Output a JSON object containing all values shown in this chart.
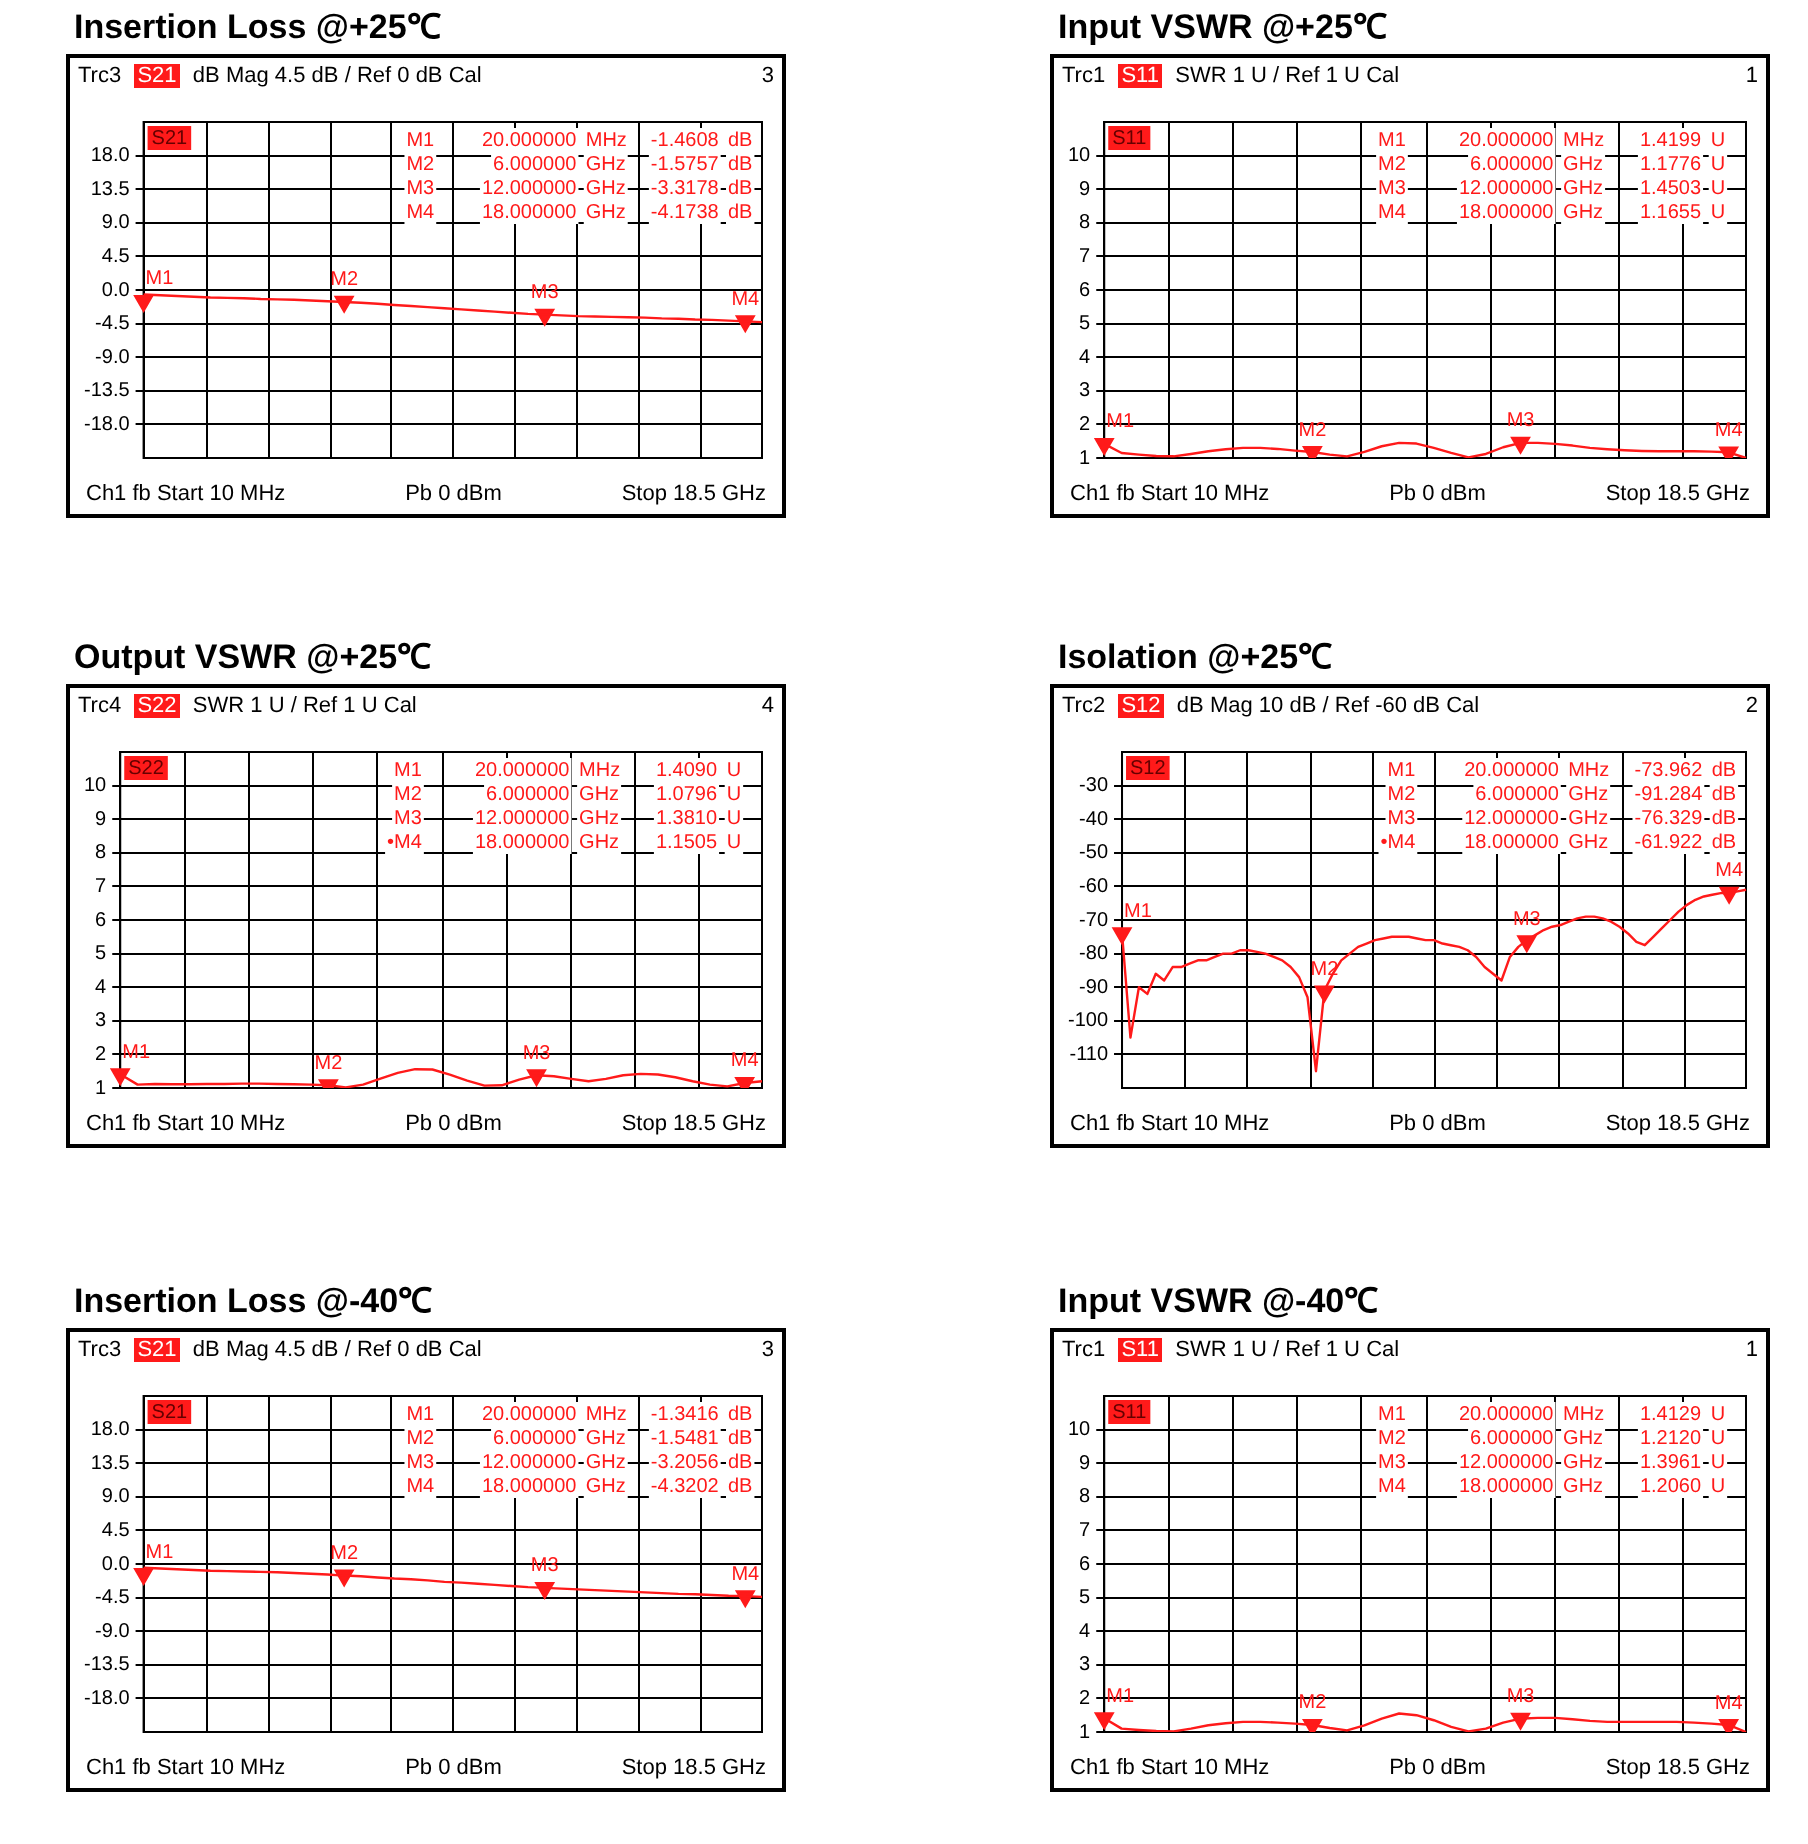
{
  "chart_data": [
    {
      "type": "line",
      "title": "Insertion Loss @+25℃",
      "subtitle": "Trc3 S21 dB Mag 4.5 dB / Ref 0 dB Cal 3",
      "ylabel": "S21",
      "annotations": [
        "Ch1 fb Start 10 MHz",
        "Pb 0 dBm",
        "Stop 18.5 GHz",
        "M1 20.000000 MHz -1.4608 dB",
        "M2 6.000000 GHz -1.5757 dB",
        "M3 12.000000 GHz -3.3178 dB",
        "M4 18.000000 GHz -4.1738 dB",
        "M1",
        "M2",
        "M3",
        "M4"
      ],
      "categories": [
        null,
        null,
        null,
        null,
        null,
        null,
        null,
        null,
        null,
        null,
        null,
        null,
        null,
        null,
        null,
        null,
        null,
        null,
        null,
        null,
        null,
        null,
        null,
        null,
        null,
        null,
        null,
        null,
        null,
        null,
        null,
        null,
        null,
        null,
        null,
        null,
        null,
        null
      ],
      "series": [
        {
          "color": "#ff1a1a",
          "values": [
            -0.6,
            -0.7,
            -0.8,
            -0.9,
            -1.0,
            -1.05,
            -1.1,
            -1.2,
            -1.25,
            -1.3,
            -1.4,
            -1.5,
            -1.6,
            -1.7,
            -1.85,
            -2.0,
            -2.15,
            -2.3,
            -2.45,
            -2.6,
            -2.75,
            -2.9,
            -3.05,
            -3.2,
            -3.3,
            -3.4,
            -3.5,
            -3.55,
            -3.6,
            -3.65,
            -3.7,
            -3.8,
            -3.85,
            -3.95,
            -4.0,
            -4.1,
            -4.2,
            -4.3
          ]
        },
        {
          "type": "scatter",
          "color": "#ff1a1a",
          "values": [
            -1.4608,
            null,
            null,
            null,
            null,
            null,
            null,
            null,
            null,
            null,
            null,
            null,
            -1.5757,
            null,
            null,
            null,
            null,
            null,
            null,
            null,
            null,
            null,
            null,
            null,
            -3.3178,
            null,
            null,
            null,
            null,
            null,
            null,
            null,
            null,
            null,
            null,
            null,
            -4.1738,
            null
          ]
        }
      ],
      "ylim": [
        -22.5,
        22.5
      ],
      "yticks": [
        {
          "value": 18,
          "label": "18.0"
        },
        {
          "value": 13.5,
          "label": "13.5"
        },
        {
          "value": 9,
          "label": "9.0"
        },
        {
          "value": 4.5,
          "label": "4.5"
        },
        {
          "value": 0,
          "label": "0.0"
        },
        {
          "value": -4.5,
          "label": "-4.5"
        },
        {
          "value": -9,
          "label": "-9.0"
        },
        {
          "value": -13.5,
          "label": "-13.5"
        },
        {
          "value": -18,
          "label": "-18.0"
        }
      ],
      "tick_labels": "y",
      "grid": true
    },
    {
      "type": "line",
      "title": "Input VSWR @+25℃",
      "subtitle": "Trc1 S11 SWR 1 U / Ref 1 U Cal 1",
      "ylabel": "S11",
      "annotations": [
        "Ch1 fb Start 10 MHz",
        "Pb 0 dBm",
        "Stop 18.5 GHz",
        "M1 20.000000 MHz 1.4199 U",
        "M2 6.000000 GHz 1.1776 U",
        "M3 12.000000 GHz 1.4503 U",
        "M4 18.000000 GHz 1.1655 U",
        "M1",
        "M2",
        "M3",
        "M4"
      ],
      "categories": [
        null,
        null,
        null,
        null,
        null,
        null,
        null,
        null,
        null,
        null,
        null,
        null,
        null,
        null,
        null,
        null,
        null,
        null,
        null,
        null,
        null,
        null,
        null,
        null,
        null,
        null,
        null,
        null,
        null,
        null,
        null,
        null,
        null,
        null,
        null,
        null,
        null,
        null
      ],
      "series": [
        {
          "color": "#ff1a1a",
          "values": [
            1.42,
            1.15,
            1.1,
            1.06,
            1.05,
            1.12,
            1.2,
            1.26,
            1.3,
            1.3,
            1.27,
            1.22,
            1.18,
            1.1,
            1.05,
            1.18,
            1.35,
            1.45,
            1.43,
            1.3,
            1.15,
            1.02,
            1.12,
            1.32,
            1.45,
            1.45,
            1.42,
            1.37,
            1.3,
            1.26,
            1.23,
            1.21,
            1.2,
            1.2,
            1.2,
            1.19,
            1.17,
            1.0
          ]
        },
        {
          "type": "scatter",
          "color": "#ff1a1a",
          "values": [
            1.4199,
            null,
            null,
            null,
            null,
            null,
            null,
            null,
            null,
            null,
            null,
            null,
            1.1776,
            null,
            null,
            null,
            null,
            null,
            null,
            null,
            null,
            null,
            null,
            null,
            1.4503,
            null,
            null,
            null,
            null,
            null,
            null,
            null,
            null,
            null,
            null,
            null,
            1.1655,
            null
          ]
        }
      ],
      "ylim": [
        1,
        11
      ],
      "yticks": [
        1,
        2,
        3,
        4,
        5,
        6,
        7,
        8,
        9,
        10
      ],
      "tick_labels": "y",
      "grid": true
    },
    {
      "type": "line",
      "title": "Output VSWR @+25℃",
      "subtitle": "Trc4 S22 SWR 1 U / Ref 1 U Cal 4",
      "ylabel": "S22",
      "annotations": [
        "Ch1 fb Start 10 MHz",
        "Pb 0 dBm",
        "Stop 18.5 GHz",
        "M1 20.000000 MHz 1.4090 U",
        "M2 6.000000 GHz 1.0796 U",
        "M3 12.000000 GHz 1.3810 U",
        "•M4 18.000000 GHz 1.1505 U",
        "M1",
        "M2",
        "M3",
        "M4"
      ],
      "categories": [
        null,
        null,
        null,
        null,
        null,
        null,
        null,
        null,
        null,
        null,
        null,
        null,
        null,
        null,
        null,
        null,
        null,
        null,
        null,
        null,
        null,
        null,
        null,
        null,
        null,
        null,
        null,
        null,
        null,
        null,
        null,
        null,
        null,
        null,
        null,
        null,
        null,
        null
      ],
      "series": [
        {
          "color": "#ff1a1a",
          "values": [
            1.41,
            1.1,
            1.12,
            1.11,
            1.11,
            1.12,
            1.12,
            1.13,
            1.13,
            1.12,
            1.11,
            1.1,
            1.08,
            1.02,
            1.1,
            1.28,
            1.45,
            1.56,
            1.55,
            1.4,
            1.22,
            1.07,
            1.08,
            1.25,
            1.38,
            1.35,
            1.27,
            1.2,
            1.27,
            1.38,
            1.42,
            1.4,
            1.32,
            1.2,
            1.1,
            1.05,
            1.15,
            1.2
          ]
        },
        {
          "type": "scatter",
          "color": "#ff1a1a",
          "values": [
            1.409,
            null,
            null,
            null,
            null,
            null,
            null,
            null,
            null,
            null,
            null,
            null,
            1.0796,
            null,
            null,
            null,
            null,
            null,
            null,
            null,
            null,
            null,
            null,
            null,
            1.381,
            null,
            null,
            null,
            null,
            null,
            null,
            null,
            null,
            null,
            null,
            null,
            1.1505,
            null
          ]
        }
      ],
      "ylim": [
        1,
        11
      ],
      "yticks": [
        1,
        2,
        3,
        4,
        5,
        6,
        7,
        8,
        9,
        10
      ],
      "tick_labels": "y",
      "grid": true
    },
    {
      "type": "line",
      "title": "Isolation @+25℃",
      "subtitle": "Trc2 S12 dB Mag 10 dB / Ref -60 dB Cal 2",
      "ylabel": "S12",
      "annotations": [
        "Ch1 fb Start 10 MHz",
        "Pb 0 dBm",
        "Stop 18.5 GHz",
        "M1 20.000000 MHz -73.962 dB",
        "M2 6.000000 GHz -91.284 dB",
        "M3 12.000000 GHz -76.329 dB",
        "•M4 18.000000 GHz -61.922 dB",
        "M1",
        "M2",
        "M3",
        "M4"
      ],
      "categories": [
        null,
        null,
        null,
        null,
        null,
        null,
        null,
        null,
        null,
        null,
        null,
        null,
        null,
        null,
        null,
        null,
        null,
        null,
        null,
        null,
        null,
        null,
        null,
        null,
        null,
        null,
        null,
        null,
        null,
        null,
        null,
        null,
        null,
        null,
        null,
        null,
        null,
        null,
        null,
        null,
        null,
        null,
        null,
        null,
        null,
        null,
        null,
        null,
        null,
        null,
        null,
        null,
        null,
        null,
        null,
        null,
        null,
        null,
        null,
        null,
        null,
        null,
        null,
        null,
        null,
        null,
        null,
        null,
        null,
        null,
        null,
        null,
        null,
        null,
        null
      ],
      "series": [
        {
          "color": "#ff1a1a",
          "values": [
            -74,
            -105,
            -90,
            -92,
            -86,
            -88,
            -84,
            -84,
            -83,
            -82,
            -82,
            -81,
            -80,
            -80,
            -79,
            -79,
            -79.5,
            -80,
            -81,
            -82,
            -84,
            -87,
            -93,
            -115,
            -91,
            -86,
            -82,
            -80,
            -78,
            -77,
            -76,
            -75.5,
            -75,
            -75,
            -75,
            -75.5,
            -76,
            -76,
            -77,
            -77.5,
            -78,
            -79,
            -81,
            -84,
            -86,
            -88,
            -81,
            -78,
            -76,
            -74.5,
            -73,
            -72,
            -71.5,
            -70.5,
            -69.5,
            -69,
            -69,
            -69.5,
            -70.5,
            -72,
            -74,
            -76.5,
            -77.5,
            -75,
            -72.5,
            -70,
            -67.5,
            -65.5,
            -64,
            -63,
            -62.5,
            -62,
            -62,
            -61.5,
            -61
          ]
        },
        {
          "type": "scatter",
          "color": "#ff1a1a",
          "values": [
            -73.962,
            null,
            null,
            null,
            null,
            null,
            null,
            null,
            null,
            null,
            null,
            null,
            null,
            null,
            null,
            null,
            null,
            null,
            null,
            null,
            null,
            null,
            null,
            null,
            -91.284,
            null,
            null,
            null,
            null,
            null,
            null,
            null,
            null,
            null,
            null,
            null,
            null,
            null,
            null,
            null,
            null,
            null,
            null,
            null,
            null,
            null,
            null,
            null,
            -76.329,
            null,
            null,
            null,
            null,
            null,
            null,
            null,
            null,
            null,
            null,
            null,
            null,
            null,
            null,
            null,
            null,
            null,
            null,
            null,
            null,
            null,
            null,
            null,
            -61.922,
            null,
            null
          ]
        }
      ],
      "ylim": [
        -120,
        -20
      ],
      "yticks": [
        -30,
        -40,
        -50,
        -60,
        -70,
        -80,
        -90,
        -100,
        -110
      ],
      "tick_labels": "y",
      "grid": true
    },
    {
      "type": "line",
      "title": "Insertion Loss @-40℃",
      "subtitle": "Trc3 S21 dB Mag 4.5 dB / Ref 0 dB Cal 3",
      "ylabel": "S21",
      "annotations": [
        "Ch1 fb Start 10 MHz",
        "Pb 0 dBm",
        "Stop 18.5 GHz",
        "M1 20.000000 MHz -1.3416 dB",
        "M2 6.000000 GHz -1.5481 dB",
        "M3 12.000000 GHz -3.2056 dB",
        "M4 18.000000 GHz -4.3202 dB",
        "M1",
        "M2",
        "M3",
        "M4"
      ],
      "categories": [
        null,
        null,
        null,
        null,
        null,
        null,
        null,
        null,
        null,
        null,
        null,
        null,
        null,
        null,
        null,
        null,
        null,
        null,
        null,
        null,
        null,
        null,
        null,
        null,
        null,
        null,
        null,
        null,
        null,
        null,
        null,
        null,
        null,
        null,
        null,
        null,
        null,
        null
      ],
      "series": [
        {
          "color": "#ff1a1a",
          "values": [
            -0.5,
            -0.6,
            -0.7,
            -0.8,
            -0.9,
            -0.95,
            -1.0,
            -1.05,
            -1.1,
            -1.2,
            -1.3,
            -1.4,
            -1.55,
            -1.65,
            -1.8,
            -1.95,
            -2.05,
            -2.2,
            -2.4,
            -2.5,
            -2.65,
            -2.8,
            -2.95,
            -3.1,
            -3.2,
            -3.3,
            -3.4,
            -3.5,
            -3.6,
            -3.7,
            -3.8,
            -3.9,
            -4.0,
            -4.05,
            -4.15,
            -4.25,
            -4.3,
            -4.4
          ]
        },
        {
          "type": "scatter",
          "color": "#ff1a1a",
          "values": [
            -1.3416,
            null,
            null,
            null,
            null,
            null,
            null,
            null,
            null,
            null,
            null,
            null,
            -1.5481,
            null,
            null,
            null,
            null,
            null,
            null,
            null,
            null,
            null,
            null,
            null,
            -3.2056,
            null,
            null,
            null,
            null,
            null,
            null,
            null,
            null,
            null,
            null,
            null,
            -4.3202,
            null
          ]
        }
      ],
      "ylim": [
        -22.5,
        22.5
      ],
      "yticks": [
        {
          "value": 18,
          "label": "18.0"
        },
        {
          "value": 13.5,
          "label": "13.5"
        },
        {
          "value": 9,
          "label": "9.0"
        },
        {
          "value": 4.5,
          "label": "4.5"
        },
        {
          "value": 0,
          "label": "0.0"
        },
        {
          "value": -4.5,
          "label": "-4.5"
        },
        {
          "value": -9,
          "label": "-9.0"
        },
        {
          "value": -13.5,
          "label": "-13.5"
        },
        {
          "value": -18,
          "label": "-18.0"
        }
      ],
      "tick_labels": "y",
      "grid": true
    },
    {
      "type": "line",
      "title": "Input VSWR @-40℃",
      "subtitle": "Trc1 S11 SWR 1 U / Ref 1 U Cal 1",
      "ylabel": "S11",
      "annotations": [
        "Ch1 fb Start 10 MHz",
        "Pb 0 dBm",
        "Stop 18.5 GHz",
        "M1 20.000000 MHz 1.4129 U",
        "M2 6.000000 GHz 1.2120 U",
        "M3 12.000000 GHz 1.3961 U",
        "M4 18.000000 GHz 1.2060 U",
        "M1",
        "M2",
        "M3",
        "M4"
      ],
      "categories": [
        null,
        null,
        null,
        null,
        null,
        null,
        null,
        null,
        null,
        null,
        null,
        null,
        null,
        null,
        null,
        null,
        null,
        null,
        null,
        null,
        null,
        null,
        null,
        null,
        null,
        null,
        null,
        null,
        null,
        null,
        null,
        null,
        null,
        null,
        null,
        null,
        null,
        null
      ],
      "series": [
        {
          "color": "#ff1a1a",
          "values": [
            1.41,
            1.1,
            1.06,
            1.03,
            1.02,
            1.1,
            1.2,
            1.26,
            1.3,
            1.3,
            1.28,
            1.25,
            1.21,
            1.12,
            1.05,
            1.2,
            1.4,
            1.55,
            1.5,
            1.35,
            1.15,
            1.02,
            1.1,
            1.28,
            1.4,
            1.42,
            1.42,
            1.38,
            1.33,
            1.3,
            1.3,
            1.3,
            1.3,
            1.3,
            1.28,
            1.25,
            1.21,
            1.0
          ]
        },
        {
          "type": "scatter",
          "color": "#ff1a1a",
          "values": [
            1.4129,
            null,
            null,
            null,
            null,
            null,
            null,
            null,
            null,
            null,
            null,
            null,
            1.212,
            null,
            null,
            null,
            null,
            null,
            null,
            null,
            null,
            null,
            null,
            null,
            1.3961,
            null,
            null,
            null,
            null,
            null,
            null,
            null,
            null,
            null,
            null,
            null,
            1.206,
            null
          ]
        }
      ],
      "ylim": [
        1,
        11
      ],
      "yticks": [
        1,
        2,
        3,
        4,
        5,
        6,
        7,
        8,
        9,
        10
      ],
      "tick_labels": "y",
      "grid": true
    }
  ]
}
